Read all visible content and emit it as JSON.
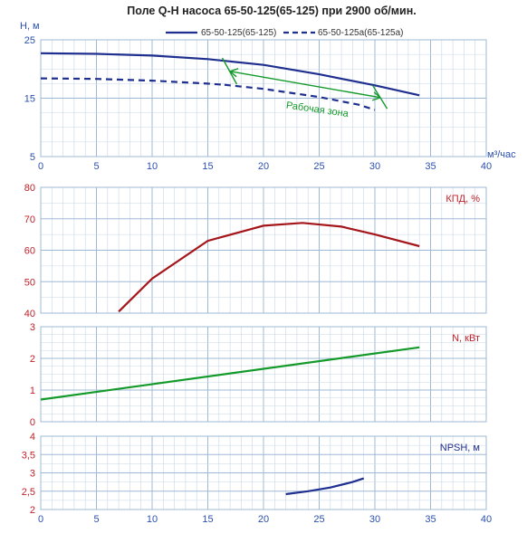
{
  "title": "Поле Q-H насоса 65-50-125(65-125) при 2900 об/мин.",
  "colors": {
    "navy": "#1f2f8f",
    "green": "#149a2a",
    "darkred": "#a5161b",
    "axisText": "#2b4fae",
    "redText": "#c0212a",
    "grid": "#9fb8d6",
    "minor": "#c9d6e6"
  },
  "chart_data": [
    {
      "type": "line",
      "id": "qh",
      "ylabel": "H, м",
      "xlabel": "м³/час",
      "xlim": [
        0,
        40
      ],
      "ylim": [
        5,
        25
      ],
      "yticks": [
        5,
        15,
        25
      ],
      "xticks": [
        0,
        5,
        10,
        15,
        20,
        25,
        30,
        35,
        40
      ],
      "series": [
        {
          "name": "65-50-125(65-125)",
          "style": "solid",
          "x": [
            0,
            5,
            10,
            15,
            20,
            25,
            30,
            34
          ],
          "y": [
            22.7,
            22.6,
            22.3,
            21.7,
            20.7,
            19.1,
            17.2,
            15.5
          ]
        },
        {
          "name": "65-50-125а(65-125а)",
          "style": "dashed",
          "x": [
            0,
            5,
            10,
            15,
            16.5
          ],
          "y": [
            18.4,
            18.3,
            18.0,
            17.5,
            17.3
          ]
        },
        {
          "name": "",
          "style": "dashed",
          "x": [
            16.5,
            20,
            25,
            28.5,
            30
          ],
          "y": [
            17.3,
            16.6,
            15.2,
            13.9,
            13.0
          ]
        }
      ],
      "annotations": [
        {
          "text": "Рабочая зона"
        }
      ]
    },
    {
      "type": "line",
      "id": "eff",
      "ylabel": "КПД, %",
      "xlim": [
        0,
        40
      ],
      "ylim": [
        40,
        80
      ],
      "yticks": [
        40,
        50,
        60,
        70,
        80
      ],
      "series": [
        {
          "name": "",
          "x": [
            7,
            10,
            15,
            20,
            23.5,
            27,
            30,
            34
          ],
          "y": [
            40.5,
            51,
            63,
            67.8,
            68.7,
            67.5,
            65,
            61.3
          ]
        }
      ]
    },
    {
      "type": "line",
      "id": "power",
      "ylabel": "N, кВт",
      "xlim": [
        0,
        40
      ],
      "ylim": [
        0,
        3
      ],
      "yticks": [
        0,
        1,
        2,
        3
      ],
      "series": [
        {
          "name": "",
          "x": [
            0,
            34
          ],
          "y": [
            0.7,
            2.35
          ]
        }
      ]
    },
    {
      "type": "line",
      "id": "npsh",
      "ylabel": "NPSH, м",
      "xlim": [
        0,
        40
      ],
      "ylim": [
        2,
        4
      ],
      "yticks": [
        "2",
        "2,5",
        "3",
        "3,5",
        "4"
      ],
      "yticknums": [
        2,
        2.5,
        3,
        3.5,
        4
      ],
      "xticks": [
        0,
        5,
        10,
        15,
        20,
        25,
        30,
        35,
        40
      ],
      "series": [
        {
          "name": "",
          "x": [
            22,
            24,
            26,
            28,
            29
          ],
          "y": [
            2.42,
            2.5,
            2.6,
            2.75,
            2.85
          ]
        }
      ]
    }
  ]
}
